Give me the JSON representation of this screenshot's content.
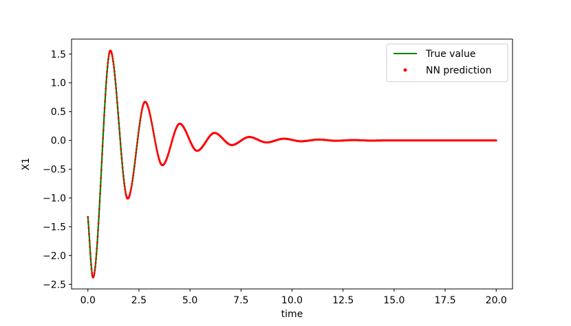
{
  "chart_data": {
    "type": "line",
    "title": "",
    "xlabel": "time",
    "ylabel": "X1",
    "xlim": [
      -0.8,
      20.8
    ],
    "ylim": [
      -2.58,
      1.76
    ],
    "xticks": [
      0.0,
      2.5,
      5.0,
      7.5,
      10.0,
      12.5,
      15.0,
      17.5,
      20.0
    ],
    "xtick_labels": [
      "0.0",
      "2.5",
      "5.0",
      "7.5",
      "10.0",
      "12.5",
      "15.0",
      "17.5",
      "20.0"
    ],
    "yticks": [
      -2.5,
      -2.0,
      -1.5,
      -1.0,
      -0.5,
      0.0,
      0.5,
      1.0,
      1.5
    ],
    "ytick_labels": [
      "−2.5",
      "−2.0",
      "−1.5",
      "−1.0",
      "−0.5",
      "0.0",
      "0.5",
      "1.0",
      "1.5"
    ],
    "grid": false,
    "legend_position": "top-right",
    "series": [
      {
        "name": "True value",
        "kind": "line",
        "color": "#008000"
      },
      {
        "name": "NN prediction",
        "kind": "scatter",
        "color": "#ff0000"
      }
    ],
    "x": [
      0.0,
      0.25,
      1.1,
      1.95,
      2.8,
      3.65,
      4.5,
      5.35,
      6.2,
      7.05,
      7.9,
      8.75,
      9.6,
      10.45,
      11.3,
      12.15,
      13.0,
      13.85,
      14.7,
      20.0
    ],
    "y": [
      -1.33,
      -2.38,
      1.56,
      -1.01,
      0.67,
      -0.43,
      0.29,
      -0.18,
      0.13,
      -0.08,
      0.06,
      -0.035,
      0.03,
      -0.015,
      0.015,
      -0.006,
      0.006,
      -0.003,
      0.0,
      0.0
    ]
  }
}
